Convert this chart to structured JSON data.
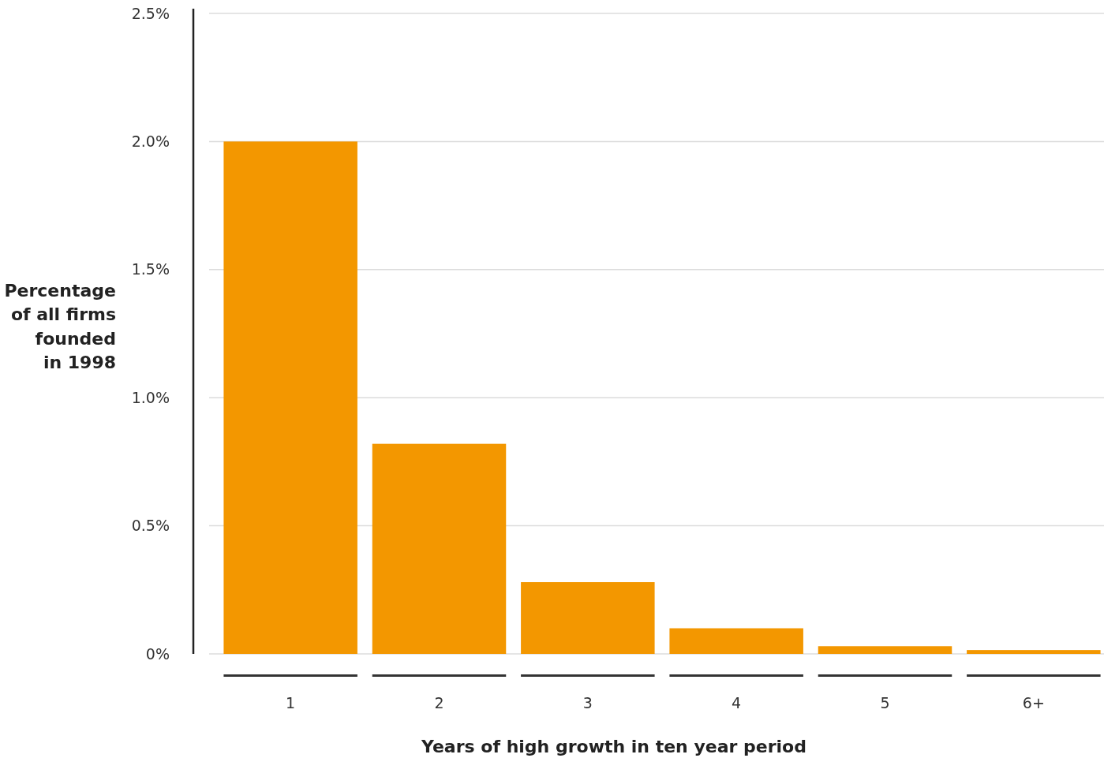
{
  "chart_data": {
    "type": "bar",
    "xlabel": "Years of high growth in ten year period",
    "ylabel": "Percentage\nof all firms\nfounded\nin 1998",
    "categories": [
      "1",
      "2",
      "3",
      "4",
      "5",
      "6+"
    ],
    "values": [
      2.0,
      0.82,
      0.28,
      0.1,
      0.03,
      0.015
    ],
    "color": "#f39700",
    "ylim": [
      0,
      2.5
    ],
    "yticks": [
      {
        "value": 0,
        "label": "0%"
      },
      {
        "value": 0.5,
        "label": "0.5%"
      },
      {
        "value": 1,
        "label": "1.0%"
      },
      {
        "value": 1.5,
        "label": "1.5%"
      },
      {
        "value": 2,
        "label": "2.0%"
      },
      {
        "value": 2.5,
        "label": "2.5%"
      }
    ],
    "grid": "y"
  }
}
